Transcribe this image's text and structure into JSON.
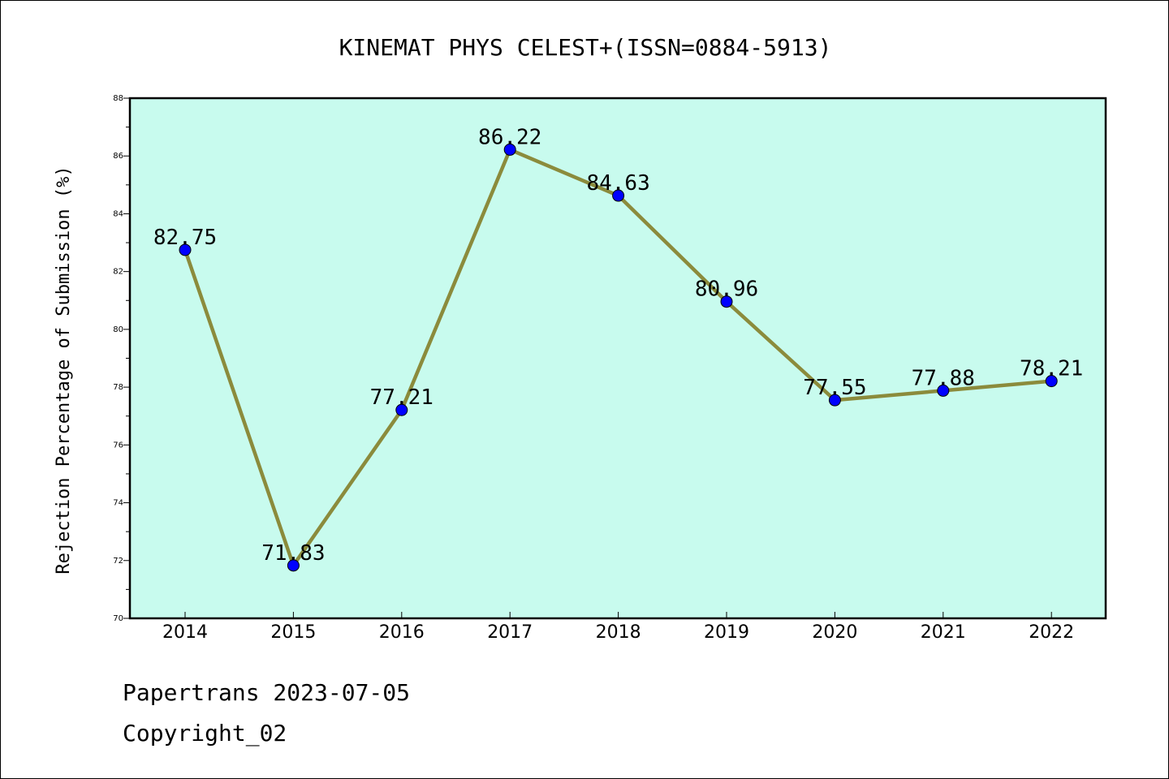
{
  "chart_data": {
    "type": "line",
    "title": "KINEMAT PHYS CELEST+(ISSN=0884-5913)",
    "xlabel": "",
    "ylabel": "Rejection Percentage of Submission (%)",
    "categories": [
      "2014",
      "2015",
      "2016",
      "2017",
      "2018",
      "2019",
      "2020",
      "2021",
      "2022"
    ],
    "values": [
      82.75,
      71.83,
      77.21,
      86.22,
      84.63,
      80.96,
      77.55,
      77.88,
      78.21
    ],
    "data_labels": [
      "82.75",
      "71.83",
      "77.21",
      "86.22",
      "84.63",
      "80.96",
      "77.55",
      "77.88",
      "78.21"
    ],
    "ylim": [
      70,
      88
    ],
    "yticks": [
      "70",
      "72",
      "74",
      "76",
      "78",
      "80",
      "82",
      "84",
      "86",
      "88"
    ],
    "grid": false,
    "colors": {
      "plot_background": "#c8fbee",
      "line": "#8b8b3c",
      "marker": "#0000ff"
    }
  },
  "footer": {
    "date_text": "Papertrans 2023-07-05",
    "copyright_text": "Copyright_02"
  }
}
